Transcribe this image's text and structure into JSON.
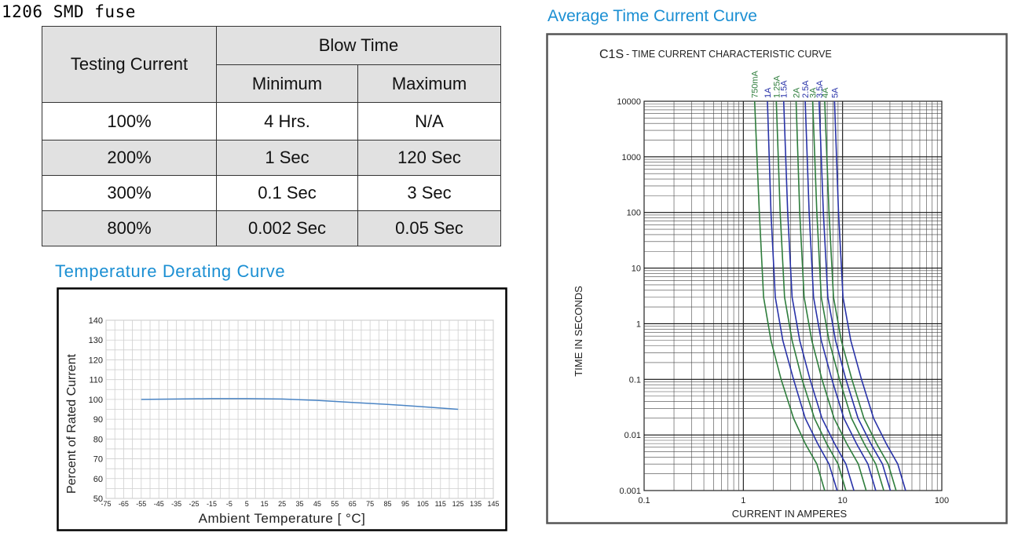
{
  "page_title": "1206 SMD fuse",
  "table": {
    "col_testing": "Testing Current",
    "col_blow": "Blow Time",
    "col_min": "Minimum",
    "col_max": "Maximum",
    "rows": [
      {
        "current": "100%",
        "min": "4 Hrs.",
        "max": "N/A"
      },
      {
        "current": "200%",
        "min": "1 Sec",
        "max": "120 Sec"
      },
      {
        "current": "300%",
        "min": "0.1 Sec",
        "max": "3 Sec"
      },
      {
        "current": "800%",
        "min": "0.002 Sec",
        "max": "0.05 Sec"
      }
    ]
  },
  "derating_title": "Temperature Derating Curve",
  "curve_title": "Average Time Current Curve",
  "chart_data": [
    {
      "type": "line",
      "title": "Temperature Derating Curve",
      "xlabel": "Ambient Temperature [ °C]",
      "ylabel": "Percent of Rated Current",
      "xlim": [
        -75,
        145
      ],
      "ylim": [
        50,
        140
      ],
      "x_ticks": [
        -75,
        -65,
        -55,
        -45,
        -35,
        -25,
        -15,
        -5,
        5,
        15,
        25,
        35,
        45,
        55,
        65,
        75,
        85,
        95,
        105,
        115,
        125,
        135,
        145
      ],
      "y_ticks": [
        50,
        60,
        70,
        80,
        90,
        100,
        110,
        120,
        130,
        140
      ],
      "grid": true,
      "series": [
        {
          "name": "derating",
          "color": "#4a84c4",
          "x": [
            -55,
            -35,
            -15,
            5,
            25,
            45,
            65,
            85,
            105,
            125
          ],
          "y": [
            100,
            100.2,
            100.4,
            100.4,
            100.2,
            99.5,
            98.5,
            97.5,
            96.3,
            95
          ]
        }
      ]
    },
    {
      "type": "line",
      "title": "C1S - TIME CURRENT CHARACTERISTIC CURVE",
      "title_prefix": "C1S",
      "title_rest": "- TIME CURRENT CHARACTERISTIC CURVE",
      "xlabel": "CURRENT IN AMPERES",
      "ylabel": "TIME IN SECONDS",
      "xscale": "log",
      "yscale": "log",
      "xlim": [
        0.1,
        100
      ],
      "ylim": [
        0.001,
        10000
      ],
      "x_tick_labels": [
        "0.1",
        "1",
        "10",
        "100"
      ],
      "y_tick_labels": [
        "0.001",
        "0.01",
        "0.1",
        "1",
        "10",
        "100",
        "1000",
        "10000"
      ],
      "grid": true,
      "series": [
        {
          "name": "750mA",
          "color": "#2e7d3c",
          "x": [
            1.3,
            1.45,
            1.6,
            1.9,
            2.4,
            3.2,
            4.2,
            5.5,
            6.6
          ],
          "y": [
            10000,
            100,
            3,
            0.5,
            0.1,
            0.02,
            0.007,
            0.003,
            0.001
          ]
        },
        {
          "name": "1A",
          "color": "#2832a8",
          "x": [
            1.75,
            1.9,
            2.1,
            2.5,
            3.2,
            4.2,
            5.6,
            7.3,
            8.8
          ],
          "y": [
            10000,
            100,
            3,
            0.5,
            0.1,
            0.02,
            0.007,
            0.003,
            0.001
          ]
        },
        {
          "name": "1.25A",
          "color": "#2e7d3c",
          "x": [
            2.15,
            2.35,
            2.6,
            3.1,
            3.9,
            5.2,
            6.9,
            9,
            10.8
          ],
          "y": [
            10000,
            100,
            3,
            0.5,
            0.1,
            0.02,
            0.007,
            0.003,
            0.001
          ]
        },
        {
          "name": "1.5A",
          "color": "#2832a8",
          "x": [
            2.55,
            2.8,
            3.1,
            3.7,
            4.7,
            6.2,
            8.3,
            10.8,
            13
          ],
          "y": [
            10000,
            100,
            3,
            0.5,
            0.1,
            0.02,
            0.007,
            0.003,
            0.001
          ]
        },
        {
          "name": "2A",
          "color": "#2e7d3c",
          "x": [
            3.4,
            3.7,
            4.1,
            4.9,
            6.2,
            8.2,
            11,
            14.4,
            17.3
          ],
          "y": [
            10000,
            100,
            3,
            0.5,
            0.1,
            0.02,
            0.007,
            0.003,
            0.001
          ]
        },
        {
          "name": "2.5A",
          "color": "#2832a8",
          "x": [
            4.2,
            4.6,
            5.1,
            6.1,
            7.8,
            10.3,
            13.8,
            18,
            21.6
          ],
          "y": [
            10000,
            100,
            3,
            0.5,
            0.1,
            0.02,
            0.007,
            0.003,
            0.001
          ]
        },
        {
          "name": "3A",
          "color": "#2e7d3c",
          "x": [
            5,
            5.5,
            6.1,
            7.3,
            9.3,
            12.3,
            16.5,
            21.6,
            26
          ],
          "y": [
            10000,
            100,
            3,
            0.5,
            0.1,
            0.02,
            0.007,
            0.003,
            0.001
          ]
        },
        {
          "name": "3.5A",
          "color": "#2832a8",
          "x": [
            5.8,
            6.4,
            7.1,
            8.5,
            10.8,
            14.3,
            19.2,
            25.2,
            30.3
          ],
          "y": [
            10000,
            100,
            3,
            0.5,
            0.1,
            0.02,
            0.007,
            0.003,
            0.001
          ]
        },
        {
          "name": "4A",
          "color": "#2e7d3c",
          "x": [
            6.6,
            7.3,
            8.1,
            9.7,
            12.4,
            16.4,
            22,
            28.8,
            34.6
          ],
          "y": [
            10000,
            100,
            3,
            0.5,
            0.1,
            0.02,
            0.007,
            0.003,
            0.001
          ]
        },
        {
          "name": "5A",
          "color": "#2832a8",
          "x": [
            8.3,
            9.1,
            10.1,
            12.1,
            15.5,
            20.5,
            27.5,
            36,
            43.2
          ],
          "y": [
            10000,
            100,
            3,
            0.5,
            0.1,
            0.02,
            0.007,
            0.003,
            0.001
          ]
        }
      ]
    }
  ]
}
